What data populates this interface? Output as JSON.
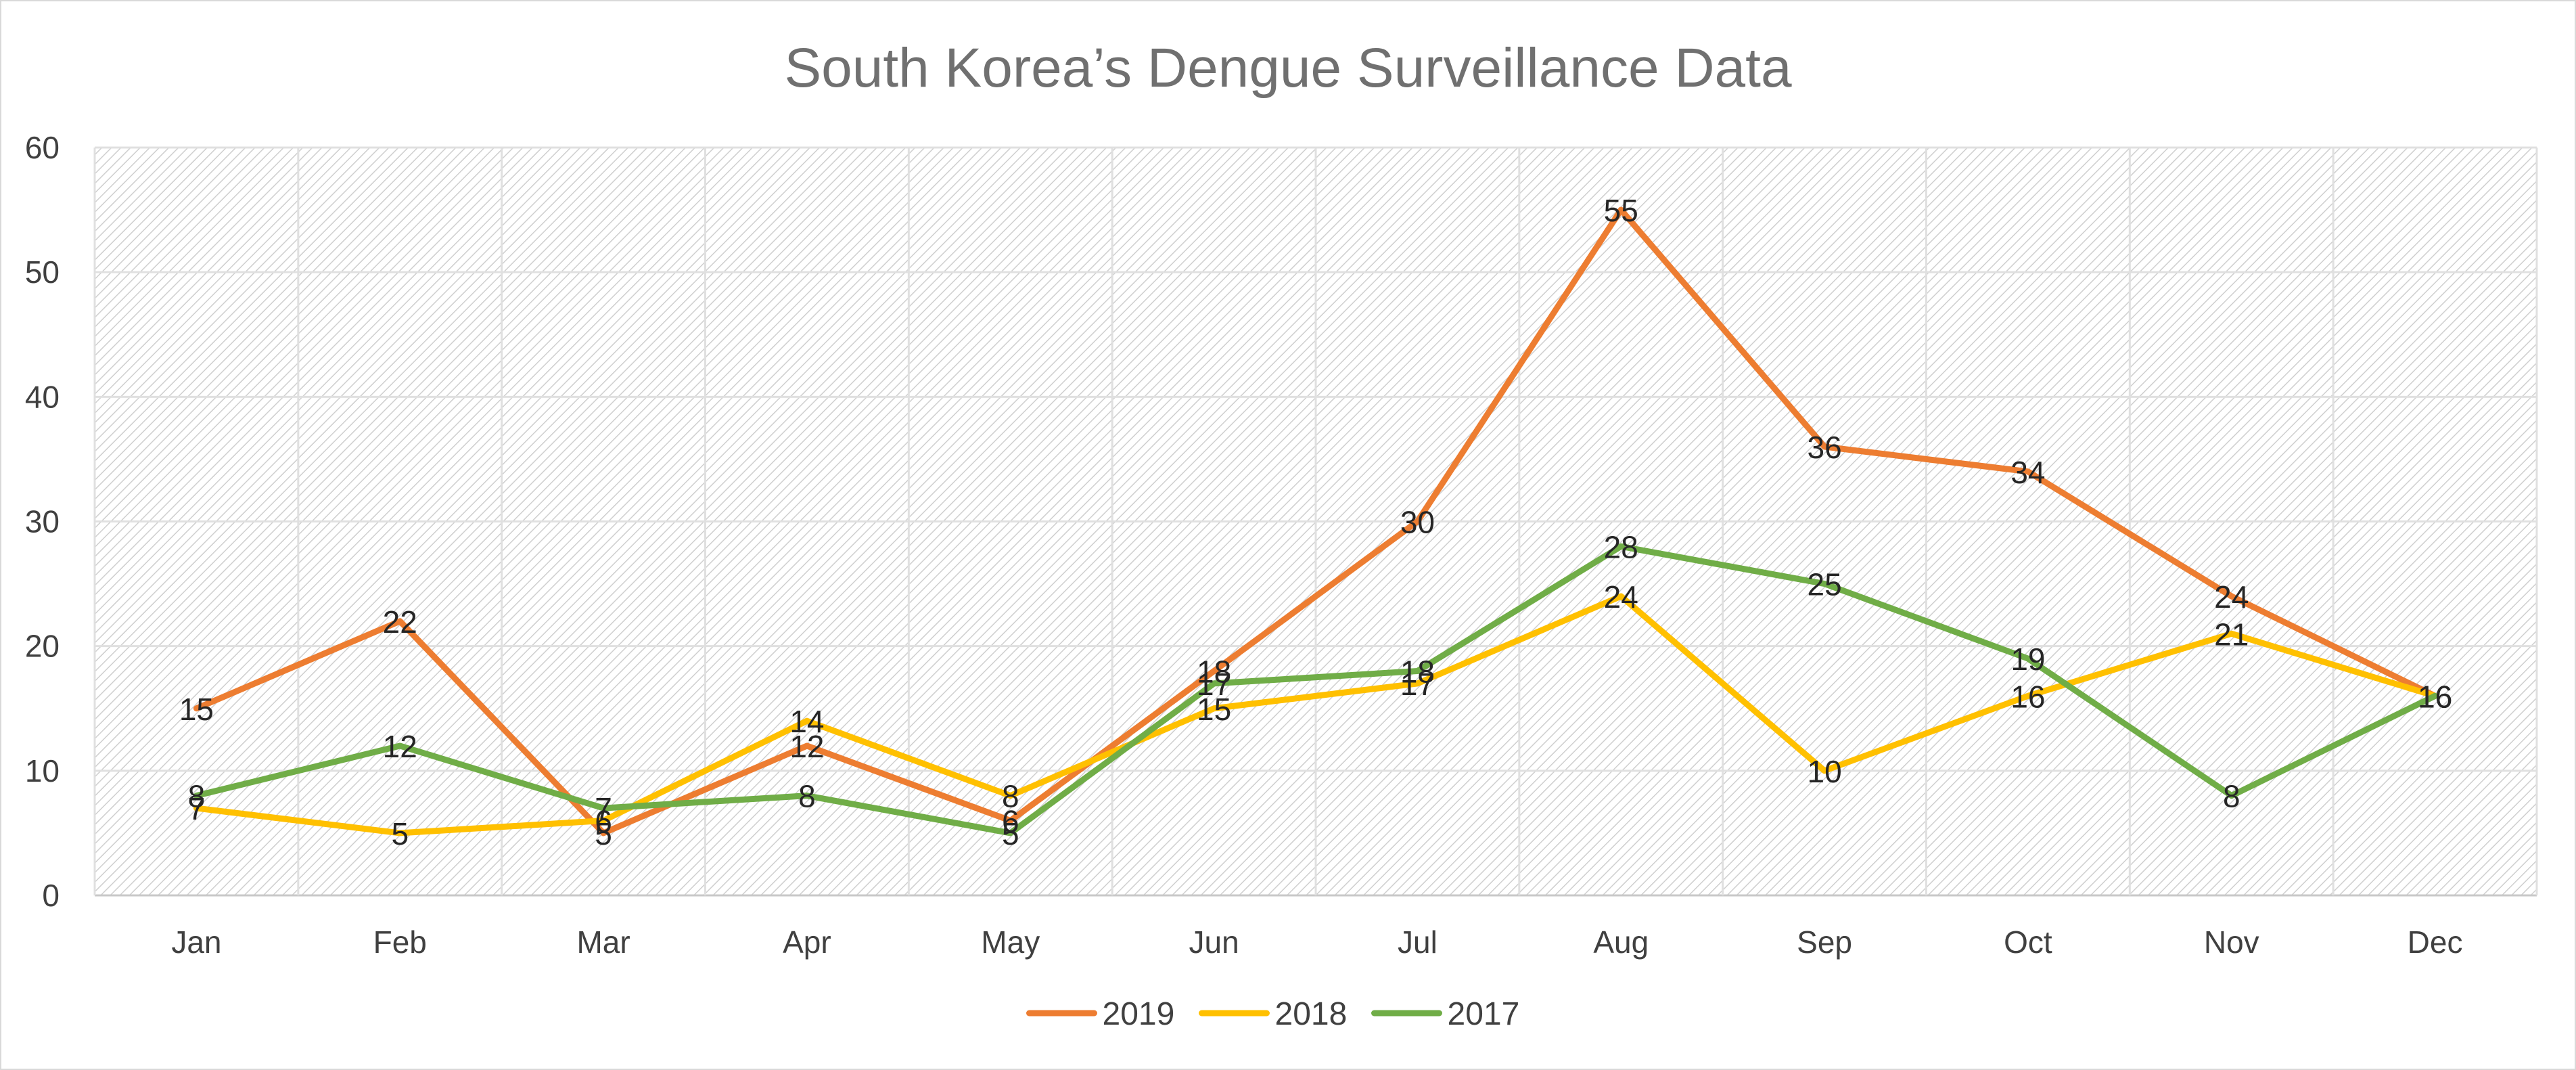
{
  "chart_data": {
    "type": "line",
    "title": "South Korea’s Dengue Surveillance Data",
    "xlabel": "",
    "ylabel": "",
    "categories": [
      "Jan",
      "Feb",
      "Mar",
      "Apr",
      "May",
      "Jun",
      "Jul",
      "Aug",
      "Sep",
      "Oct",
      "Nov",
      "Dec"
    ],
    "ylim": [
      0,
      60
    ],
    "yticks": [
      "0",
      "10",
      "20",
      "30",
      "40",
      "50",
      "60"
    ],
    "grid": true,
    "legend_position": "bottom",
    "series": [
      {
        "name": "2019",
        "color": "#ED7D31",
        "values": [
          15,
          22,
          5,
          12,
          6,
          18,
          30,
          55,
          36,
          34,
          24,
          16
        ]
      },
      {
        "name": "2018",
        "color": "#FFC000",
        "values": [
          7,
          5,
          6,
          14,
          8,
          15,
          17,
          24,
          10,
          16,
          21,
          16
        ]
      },
      {
        "name": "2017",
        "color": "#70AD47",
        "values": [
          8,
          12,
          7,
          8,
          5,
          17,
          18,
          28,
          25,
          19,
          8,
          16
        ]
      }
    ]
  }
}
